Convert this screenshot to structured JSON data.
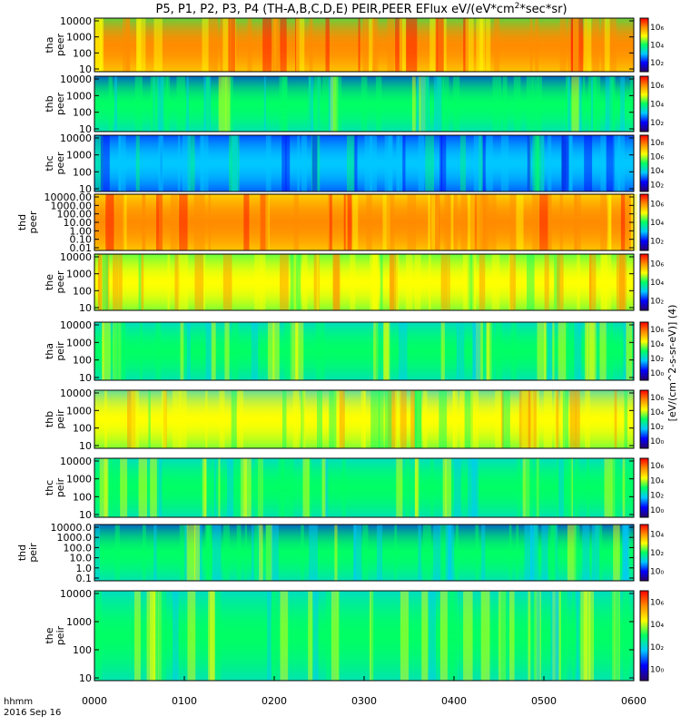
{
  "chart_data": {
    "type": "heatmap",
    "title": "P5, P1, P2, P3, P4 (TH-A,B,C,D,E) PEIR,PEER EFlux eV/(eV*cm",
    "title_sup": "2",
    "title_tail": "*sec*sr)",
    "x_axis": {
      "label_line1": "hhmm",
      "label_line2": "2016 Sep 16",
      "ticks": [
        "0000",
        "0100",
        "0200",
        "0300",
        "0400",
        "0500",
        "0600"
      ],
      "range": [
        "0000",
        "0600"
      ]
    },
    "colorbar_label": "[eV/(cm^2-s-sr-eV)] (4)",
    "colormap": [
      "#2a0066",
      "#0000ff",
      "#00c8ff",
      "#00ff64",
      "#ffff00",
      "#ff8c00",
      "#ff0000"
    ],
    "panels": [
      {
        "name": "tha peer",
        "label1": "tha",
        "label2": "peer",
        "yticks": [
          "10",
          "100",
          "1000",
          "10000"
        ],
        "log": true,
        "cbar_ticks": [
          "10₂",
          "10₄",
          "10₆"
        ],
        "mean_level": 0.8
      },
      {
        "name": "thb peer",
        "label1": "thb",
        "label2": "peer",
        "yticks": [
          "10",
          "100",
          "1000",
          "10000"
        ],
        "log": true,
        "cbar_ticks": [
          "10₂",
          "10₄",
          "10₆"
        ],
        "mean_level": 0.45
      },
      {
        "name": "thc peer",
        "label1": "thc",
        "label2": "peer",
        "yticks": [
          "10",
          "100",
          "1000",
          "10000"
        ],
        "log": true,
        "cbar_ticks": [
          "10₂",
          "10₄",
          "10₆",
          "10₈"
        ],
        "mean_level": 0.35
      },
      {
        "name": "thd peer",
        "label1": "thd",
        "label2": "peer",
        "yticks": [
          "0.01",
          "0.10",
          "1.00",
          "10.00",
          "100.00",
          "1000.00",
          "10000.00"
        ],
        "log": true,
        "cbar_ticks": [
          "10₂",
          "10₄",
          "10₆"
        ],
        "mean_level": 0.85
      },
      {
        "name": "the peer",
        "label1": "the",
        "label2": "peer",
        "yticks": [
          "10",
          "100",
          "1000",
          "10000"
        ],
        "log": true,
        "cbar_ticks": [
          "10₂",
          "10₄",
          "10₆"
        ],
        "mean_level": 0.72
      },
      {
        "name": "tha peir",
        "label1": "tha",
        "label2": "peir",
        "yticks": [
          "10",
          "100",
          "1000",
          "10000"
        ],
        "log": true,
        "cbar_ticks": [
          "10₀",
          "10₂",
          "10₄",
          "10₆"
        ],
        "mean_level": 0.55
      },
      {
        "name": "thb peir",
        "label1": "thb",
        "label2": "peir",
        "yticks": [
          "10",
          "100",
          "1000",
          "10000"
        ],
        "log": true,
        "cbar_ticks": [
          "10₀",
          "10₂",
          "10₄",
          "10₆"
        ],
        "mean_level": 0.65
      },
      {
        "name": "thc peir",
        "label1": "thc",
        "label2": "peir",
        "yticks": [
          "10",
          "100",
          "1000",
          "10000"
        ],
        "log": true,
        "cbar_ticks": [
          "10₀",
          "10₂",
          "10₄",
          "10₆"
        ],
        "mean_level": 0.55
      },
      {
        "name": "thd peir",
        "label1": "thd",
        "label2": "peir",
        "yticks": [
          "0.1",
          "1.0",
          "10.0",
          "100.0",
          "1000.0",
          "10000.0"
        ],
        "log": true,
        "cbar_ticks": [
          "10₀",
          "10₂",
          "10₄"
        ],
        "mean_level": 0.45
      },
      {
        "name": "the peir",
        "label1": "the",
        "label2": "peir",
        "yticks": [
          "10",
          "100",
          "1000",
          "10000"
        ],
        "log": true,
        "cbar_ticks": [
          "10₀",
          "10₂",
          "10₄",
          "10₆"
        ],
        "mean_level": 0.55
      }
    ]
  }
}
